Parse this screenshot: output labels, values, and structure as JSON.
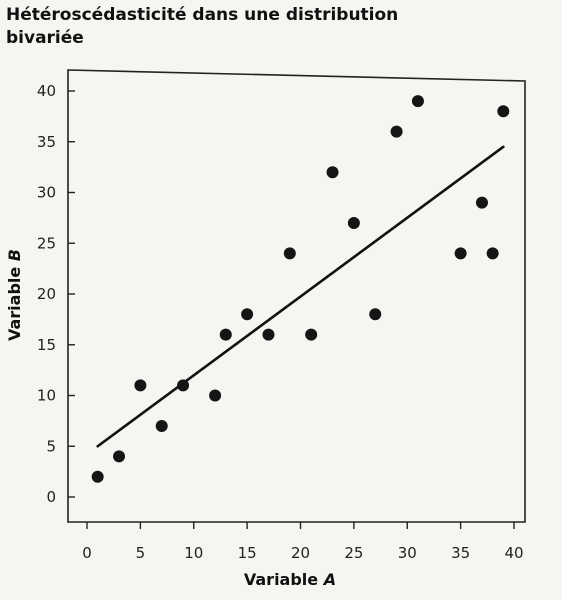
{
  "chart_data": {
    "type": "scatter",
    "title": "Hétéroscédasticité dans une distribution bivariée",
    "xlabel": "Variable A",
    "xlabel_main": "Variable ",
    "xlabel_var": "A",
    "ylabel": "Variable B",
    "ylabel_main": "Variable ",
    "ylabel_var": "B",
    "xlim": [
      -2,
      40
    ],
    "ylim": [
      -2,
      42
    ],
    "xticks": [
      0,
      5,
      10,
      15,
      20,
      25,
      30,
      35,
      40
    ],
    "yticks": [
      0,
      5,
      10,
      15,
      20,
      25,
      30,
      35,
      40
    ],
    "grid": false,
    "points": [
      {
        "x": 1,
        "y": 2
      },
      {
        "x": 3,
        "y": 4
      },
      {
        "x": 5,
        "y": 11
      },
      {
        "x": 7,
        "y": 7
      },
      {
        "x": 9,
        "y": 11
      },
      {
        "x": 12,
        "y": 10
      },
      {
        "x": 13,
        "y": 16
      },
      {
        "x": 15,
        "y": 18
      },
      {
        "x": 17,
        "y": 16
      },
      {
        "x": 19,
        "y": 24
      },
      {
        "x": 21,
        "y": 16
      },
      {
        "x": 23,
        "y": 32
      },
      {
        "x": 25,
        "y": 27
      },
      {
        "x": 27,
        "y": 18
      },
      {
        "x": 29,
        "y": 36
      },
      {
        "x": 31,
        "y": 39
      },
      {
        "x": 35,
        "y": 24
      },
      {
        "x": 37,
        "y": 29
      },
      {
        "x": 38,
        "y": 24
      },
      {
        "x": 39,
        "y": 38
      }
    ],
    "trend_line": {
      "x": [
        1,
        39
      ],
      "y": [
        5,
        34.5
      ]
    }
  }
}
